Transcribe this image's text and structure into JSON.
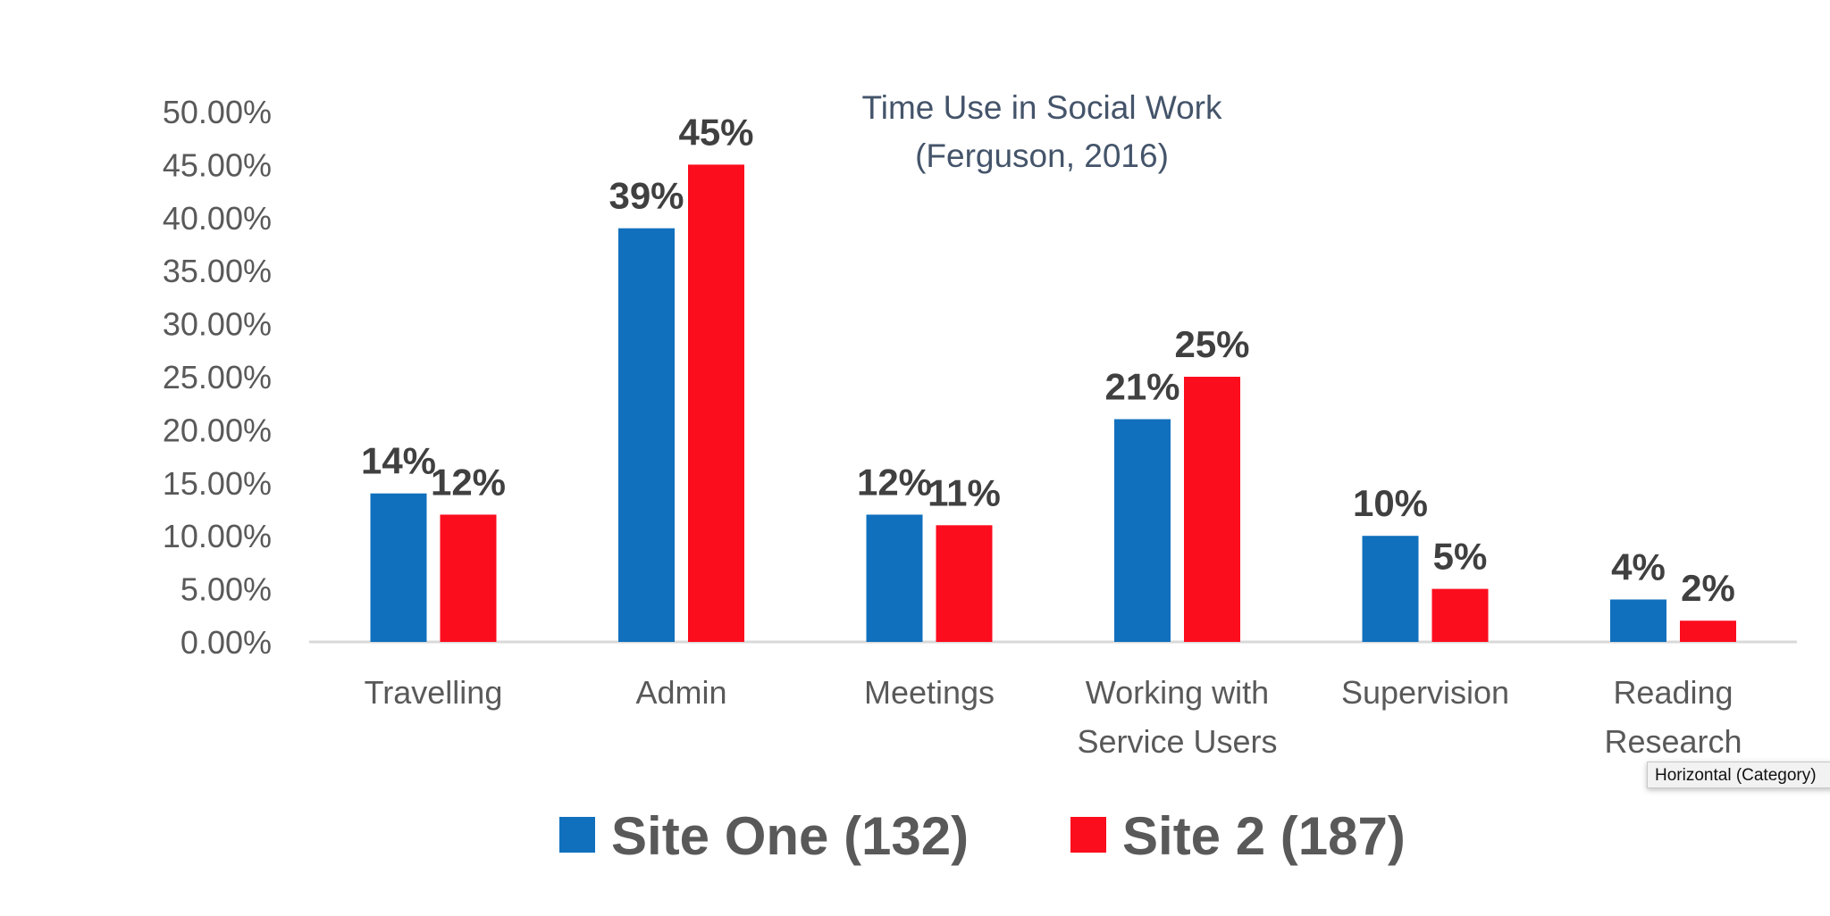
{
  "chart_data": {
    "type": "bar",
    "title": "Time Use in Social Work",
    "subtitle": "(Ferguson, 2016)",
    "categories": [
      [
        "Travelling"
      ],
      [
        "Admin"
      ],
      [
        "Meetings"
      ],
      [
        "Working with",
        "Service Users"
      ],
      [
        "Supervision"
      ],
      [
        "Reading",
        "Research"
      ]
    ],
    "series": [
      {
        "name": "Site One (132)",
        "color": "#1170bd",
        "values": [
          14,
          39,
          12,
          21,
          10,
          4
        ],
        "labels": [
          "14%",
          "39%",
          "12%",
          "21%",
          "10%",
          "4%"
        ]
      },
      {
        "name": "Site 2 (187)",
        "color": "#fb0d1e",
        "values": [
          12,
          45,
          11,
          25,
          5,
          2
        ],
        "labels": [
          "12%",
          "45%",
          "11%",
          "25%",
          "5%",
          "2%"
        ]
      }
    ],
    "ylim": [
      0,
      50
    ],
    "yticks": [
      "0.00%",
      "5.00%",
      "10.00%",
      "15.00%",
      "20.00%",
      "25.00%",
      "30.00%",
      "35.00%",
      "40.00%",
      "45.00%",
      "50.00%"
    ],
    "grid": false,
    "legend": "bottom"
  },
  "tooltip": "Horizontal (Category)"
}
